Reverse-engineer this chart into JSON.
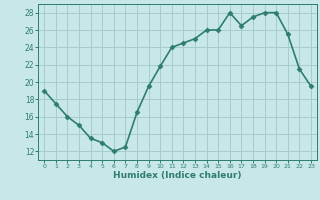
{
  "x": [
    0,
    1,
    2,
    3,
    4,
    5,
    6,
    7,
    8,
    9,
    10,
    11,
    12,
    13,
    14,
    15,
    16,
    17,
    18,
    19,
    20,
    21,
    22,
    23
  ],
  "y": [
    19.0,
    17.5,
    16.0,
    15.0,
    13.5,
    13.0,
    12.0,
    12.5,
    16.5,
    19.5,
    21.8,
    24.0,
    24.5,
    25.0,
    26.0,
    26.0,
    28.0,
    26.5,
    27.5,
    28.0,
    28.0,
    25.5,
    21.5,
    19.5
  ],
  "xlabel": "Humidex (Indice chaleur)",
  "xlim": [
    -0.5,
    23.5
  ],
  "ylim": [
    11,
    29
  ],
  "yticks": [
    12,
    14,
    16,
    18,
    20,
    22,
    24,
    26,
    28
  ],
  "xticks": [
    0,
    1,
    2,
    3,
    4,
    5,
    6,
    7,
    8,
    9,
    10,
    11,
    12,
    13,
    14,
    15,
    16,
    17,
    18,
    19,
    20,
    21,
    22,
    23
  ],
  "line_color": "#2e7d6e",
  "marker_color": "#2e7d6e",
  "bg_color": "#c8e8e8",
  "grid_color": "#a8cccc",
  "tick_label_color": "#2e7d6e",
  "xlabel_color": "#2e7d6e",
  "line_width": 1.2,
  "marker_size": 2.5
}
